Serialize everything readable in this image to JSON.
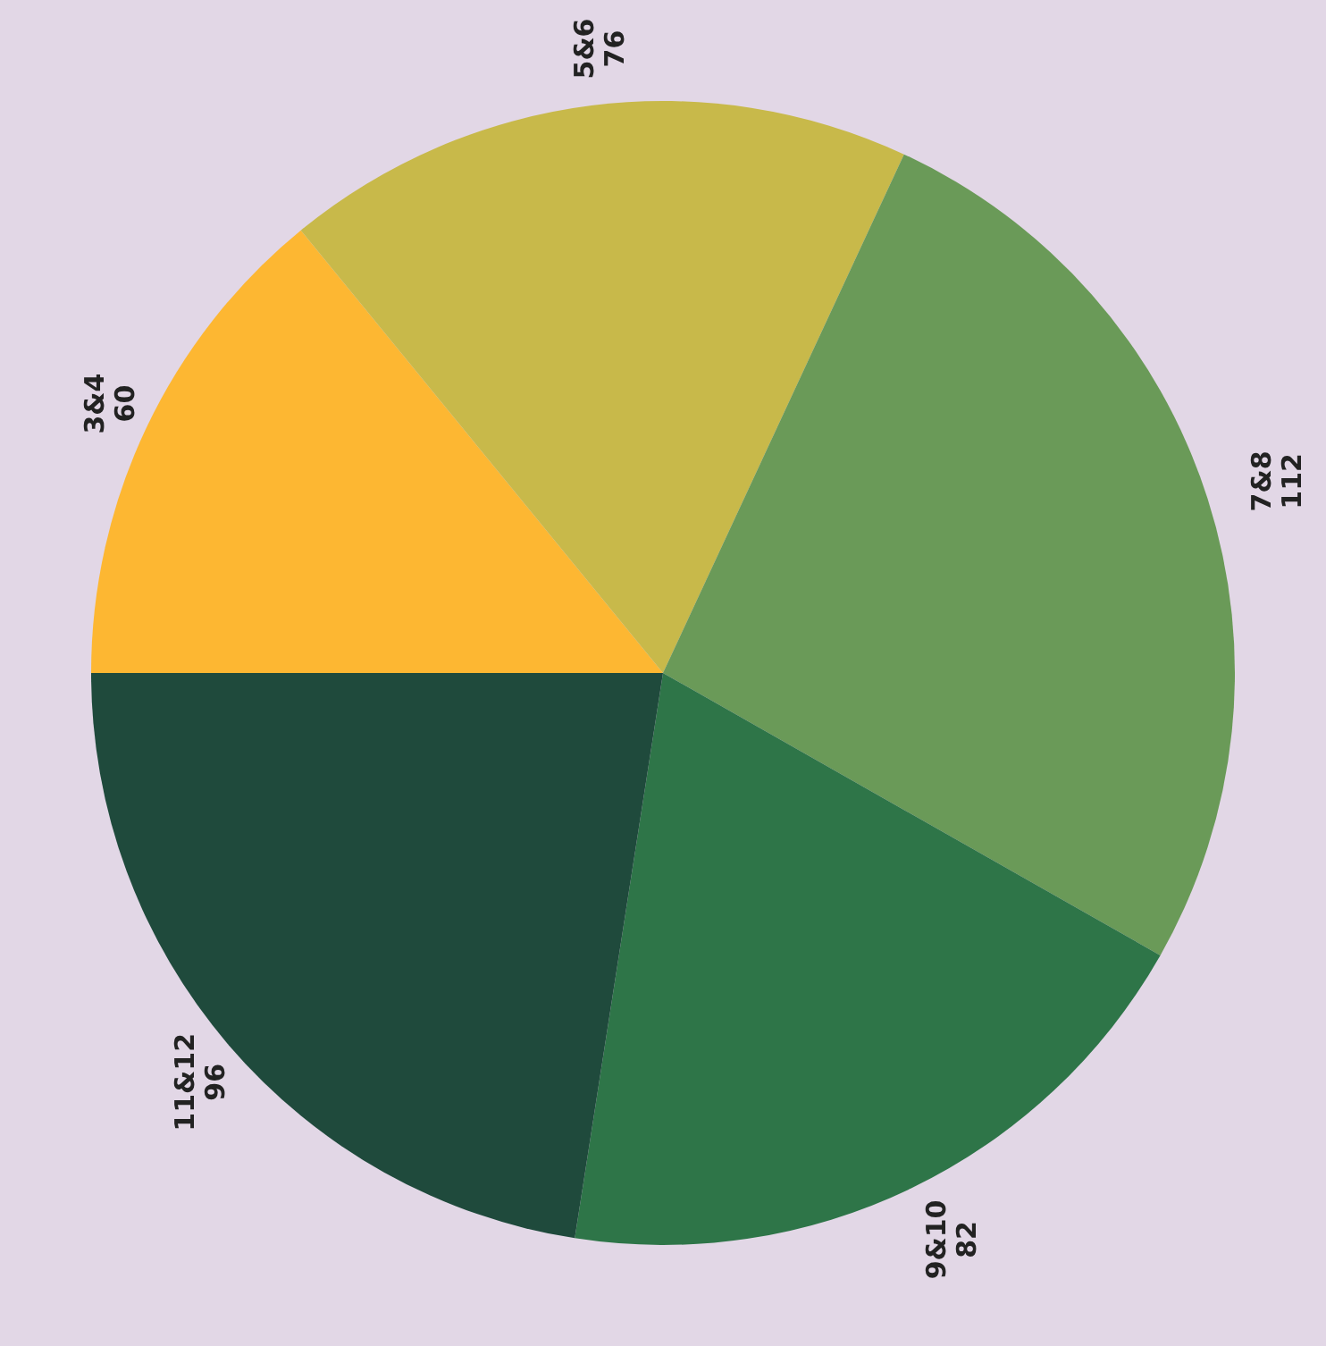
{
  "chart_data": {
    "type": "pie",
    "categories": [
      "3&4",
      "5&6",
      "7&8",
      "9&10",
      "11&12"
    ],
    "values": [
      60,
      76,
      112,
      82,
      96
    ],
    "colors": [
      "#fdb732",
      "#c8b94a",
      "#6a9a58",
      "#2e7548",
      "#1f4a3c"
    ],
    "data_labels": true
  }
}
